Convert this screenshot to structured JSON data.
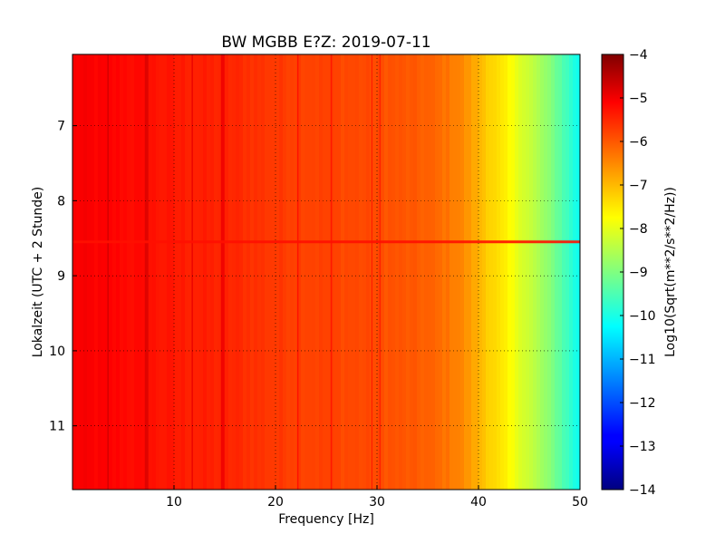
{
  "chart_data": {
    "type": "heatmap",
    "title": "BW MGBB E?Z: 2019-07-11",
    "xlabel": "Frequency [Hz]",
    "ylabel": "Lokalzeit (UTC + 2 Stunde)",
    "xlim": [
      0,
      50
    ],
    "ylim": [
      6.05,
      11.85
    ],
    "y_inverted": true,
    "x_ticks": [
      10,
      20,
      30,
      40,
      50
    ],
    "x_tick_labels": [
      "10",
      "20",
      "30",
      "40",
      "50"
    ],
    "y_ticks": [
      7,
      8,
      9,
      10,
      11
    ],
    "y_tick_labels": [
      "7",
      "8",
      "9",
      "10",
      "11"
    ],
    "grid": true,
    "colormap": "jet",
    "colorbar": {
      "label": "Log10(Sqrt(m**2/s**2/Hz))",
      "range": [
        -14,
        -4
      ],
      "ticks": [
        -4,
        -5,
        -6,
        -7,
        -8,
        -9,
        -10,
        -11,
        -12,
        -13,
        -14
      ],
      "tick_labels": [
        "−4",
        "−5",
        "−6",
        "−7",
        "−8",
        "−9",
        "−10",
        "−11",
        "−12",
        "−13",
        "−14"
      ]
    },
    "spectral_profile": {
      "frequency_hz": [
        0,
        5,
        10,
        15,
        20,
        25,
        30,
        35,
        38,
        40,
        42,
        44,
        46,
        48,
        50
      ],
      "log10_amplitude": [
        -5.2,
        -5.3,
        -5.5,
        -5.6,
        -5.8,
        -5.9,
        -6.0,
        -6.2,
        -6.5,
        -7.0,
        -7.5,
        -8.0,
        -8.6,
        -9.3,
        -10.2
      ]
    },
    "spectral_lines_hz": [
      3.5,
      7.3,
      11.8,
      14.8,
      22.2,
      25.5,
      29.5,
      30.3
    ]
  }
}
